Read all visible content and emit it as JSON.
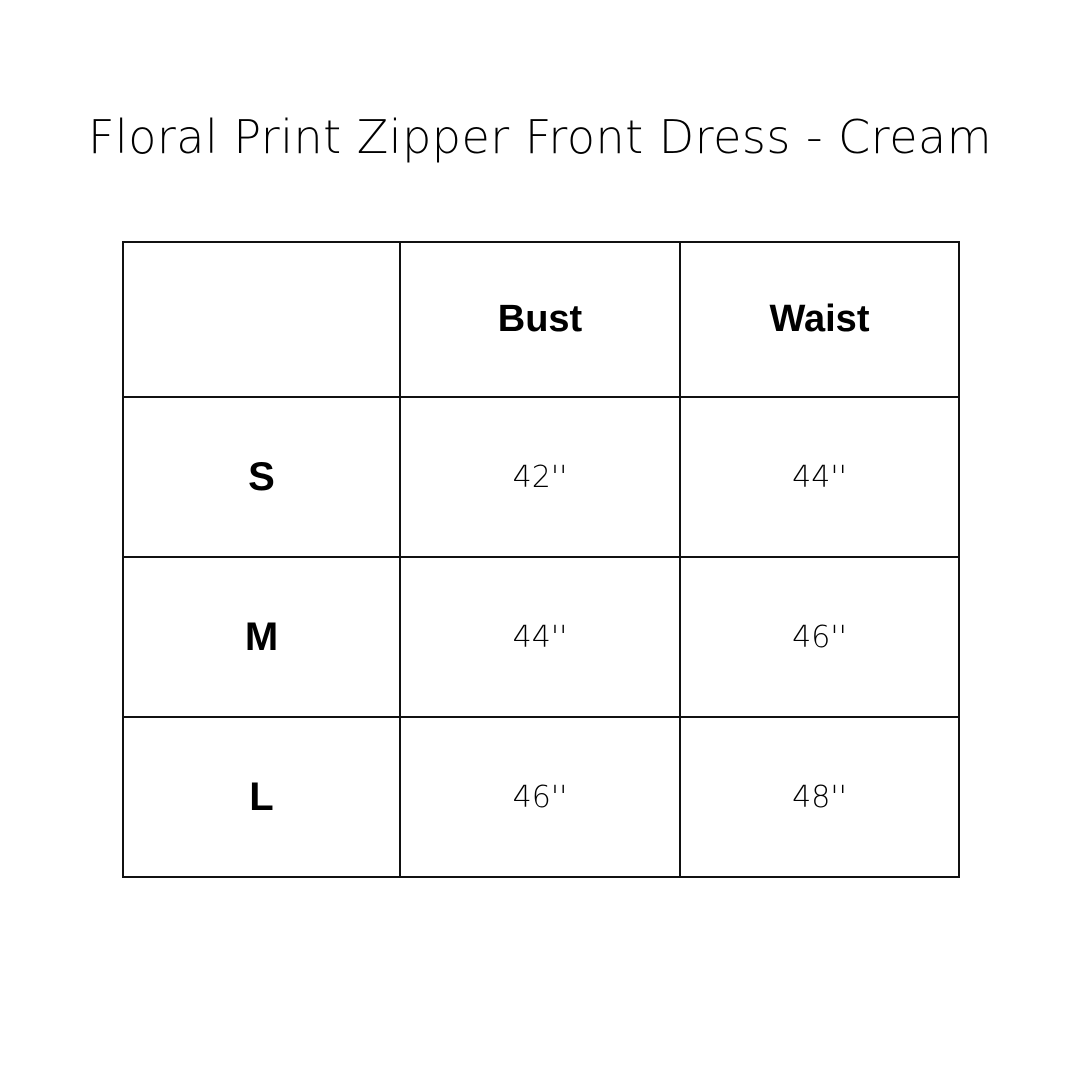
{
  "title": "Floral Print Zipper Front Dress - Cream",
  "table": {
    "headers": [
      "",
      "Bust",
      "Waist"
    ],
    "rows": [
      {
        "size": "S",
        "bust": "42''",
        "waist": "44''"
      },
      {
        "size": "M",
        "bust": "44''",
        "waist": "46''"
      },
      {
        "size": "L",
        "bust": "46''",
        "waist": "48''"
      }
    ]
  }
}
